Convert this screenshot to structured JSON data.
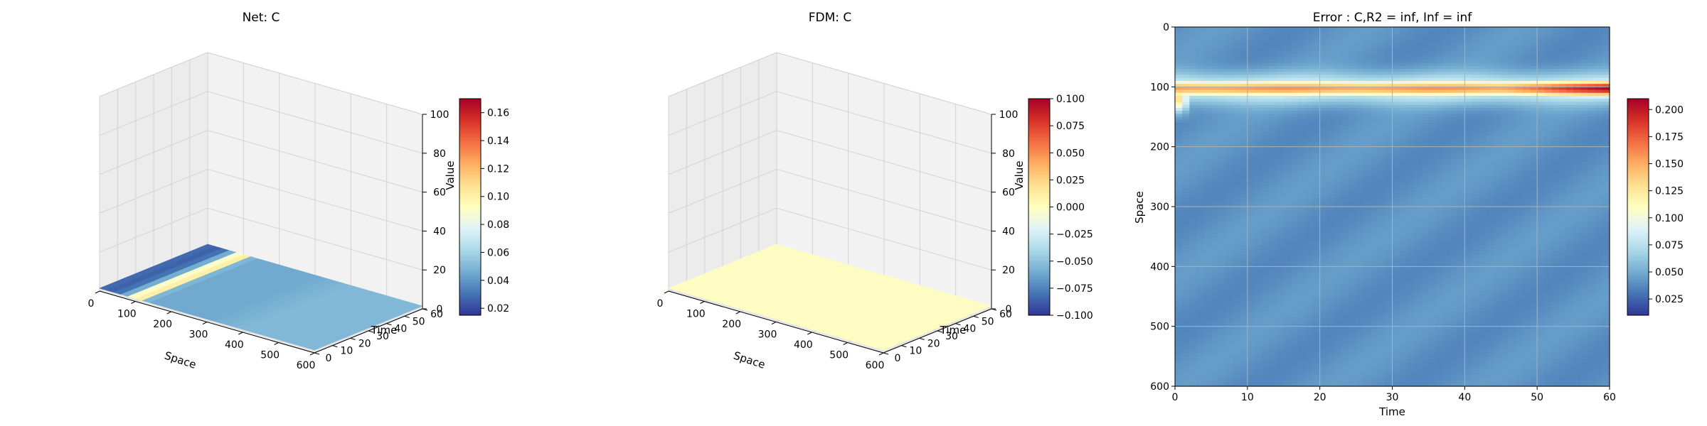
{
  "colors": {
    "pane": "#f2f2f2",
    "pane_dark": "#e9e9e9",
    "grid": "#cfcfcf",
    "fdm_surface": "#fefcc2",
    "colormap": "RdYlBu_r"
  },
  "chart_data": [
    {
      "type": "surface3d",
      "title": "Net: C",
      "xlabel": "Space",
      "ylabel": "Time",
      "zlabel": "Value",
      "x_ticks": [
        "0",
        "100",
        "200",
        "300",
        "400",
        "500",
        "600"
      ],
      "y_ticks": [
        "0",
        "10",
        "20",
        "30",
        "40",
        "50",
        "60"
      ],
      "z_ticks": [
        "0",
        "20",
        "40",
        "60",
        "80",
        "100"
      ],
      "xlim": [
        0,
        600
      ],
      "ylim": [
        0,
        60
      ],
      "zlim": [
        0,
        100
      ],
      "colorbar": {
        "ticks": [
          "0.02",
          "0.04",
          "0.06",
          "0.08",
          "0.10",
          "0.12",
          "0.14",
          "0.16"
        ],
        "range": [
          0.015,
          0.17
        ]
      },
      "surface_profile": {
        "space": [
          0,
          25,
          50,
          75,
          90,
          100,
          110,
          125,
          150,
          200,
          300,
          400,
          500,
          600
        ],
        "value": [
          0.03,
          0.025,
          0.03,
          0.05,
          0.09,
          0.16,
          0.1,
          0.05,
          0.045,
          0.045,
          0.045,
          0.05,
          0.05,
          0.05
        ]
      },
      "grid": true
    },
    {
      "type": "surface3d",
      "title": "FDM: C",
      "xlabel": "Space",
      "ylabel": "Time",
      "zlabel": "Value",
      "x_ticks": [
        "0",
        "100",
        "200",
        "300",
        "400",
        "500",
        "600"
      ],
      "y_ticks": [
        "0",
        "10",
        "20",
        "30",
        "40",
        "50",
        "60"
      ],
      "z_ticks": [
        "0",
        "20",
        "40",
        "60",
        "80",
        "100"
      ],
      "xlim": [
        0,
        600
      ],
      "ylim": [
        0,
        60
      ],
      "zlim": [
        0,
        100
      ],
      "colorbar": {
        "ticks": [
          "0.100",
          "0.075",
          "0.050",
          "0.025",
          "0.000",
          "−0.025",
          "−0.050",
          "−0.075",
          "−0.100"
        ],
        "range": [
          -0.1,
          0.1
        ]
      },
      "surface_value": 0.0,
      "grid": true
    },
    {
      "type": "heatmap",
      "title": "Error : C,R2 = inf, Inf = inf",
      "xlabel": "Time",
      "ylabel": "Space",
      "x_ticks": [
        "0",
        "10",
        "20",
        "30",
        "40",
        "50",
        "60"
      ],
      "y_ticks": [
        "0",
        "100",
        "200",
        "300",
        "400",
        "500",
        "600"
      ],
      "xlim": [
        0,
        60
      ],
      "ylim": [
        600,
        0
      ],
      "colorbar": {
        "ticks": [
          "0.200",
          "0.175",
          "0.150",
          "0.125",
          "0.100",
          "0.075",
          "0.050",
          "0.025"
        ],
        "range": [
          0.01,
          0.21
        ]
      },
      "band": {
        "space_center": 103,
        "peak_value": 0.21
      },
      "background_value": 0.04,
      "grid": true
    }
  ]
}
